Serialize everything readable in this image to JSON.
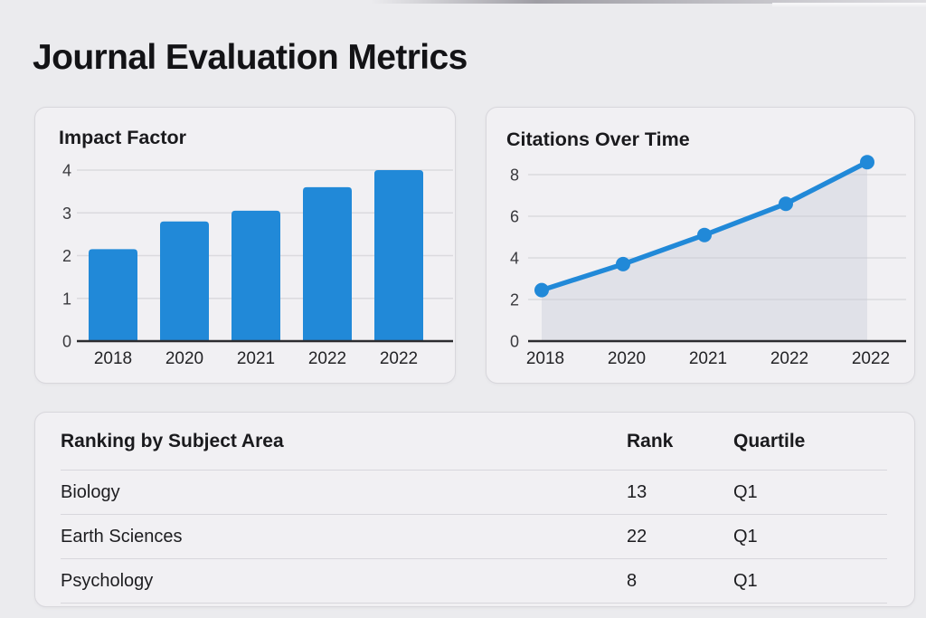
{
  "page": {
    "title": "Journal Evaluation Metrics"
  },
  "colors": {
    "accent_blue": "#2189d8",
    "page_bg": "#ebebee",
    "card_bg": "#f1f0f3",
    "card_border": "#d8d7dc",
    "grid_line": "#dbdade",
    "axis_line": "#2c2c2f",
    "area_fill": "rgba(199,202,215,0.40)",
    "tick_text": "#39393d",
    "x_label_text": "#232326"
  },
  "chart_data": [
    {
      "type": "bar",
      "title": "Impact Factor",
      "categories": [
        "2018",
        "2020",
        "2021",
        "2022",
        "2022"
      ],
      "values": [
        2.15,
        2.8,
        3.05,
        3.6,
        4.0
      ],
      "yticks": [
        0,
        1,
        2,
        3,
        4
      ],
      "ylim": [
        0,
        4
      ],
      "grid": true,
      "legend": "none",
      "xlabel": "",
      "ylabel": ""
    },
    {
      "type": "line",
      "title": "Citations Over Time",
      "categories": [
        "2018",
        "2020",
        "2021",
        "2022",
        "2022"
      ],
      "values": [
        2.45,
        3.7,
        5.1,
        6.6,
        8.6
      ],
      "yticks": [
        0,
        2,
        4,
        6,
        8
      ],
      "ylim": [
        0,
        9
      ],
      "grid": true,
      "area": true,
      "markers": true,
      "legend": "none",
      "xlabel": "",
      "ylabel": ""
    }
  ],
  "table": {
    "headers": [
      "Ranking by Subject Area",
      "Rank",
      "Quartile"
    ],
    "rows": [
      {
        "subject": "Biology",
        "rank": "13",
        "quartile": "Q1"
      },
      {
        "subject": "Earth Sciences",
        "rank": "22",
        "quartile": "Q1"
      },
      {
        "subject": "Psychology",
        "rank": "8",
        "quartile": "Q1"
      }
    ]
  }
}
